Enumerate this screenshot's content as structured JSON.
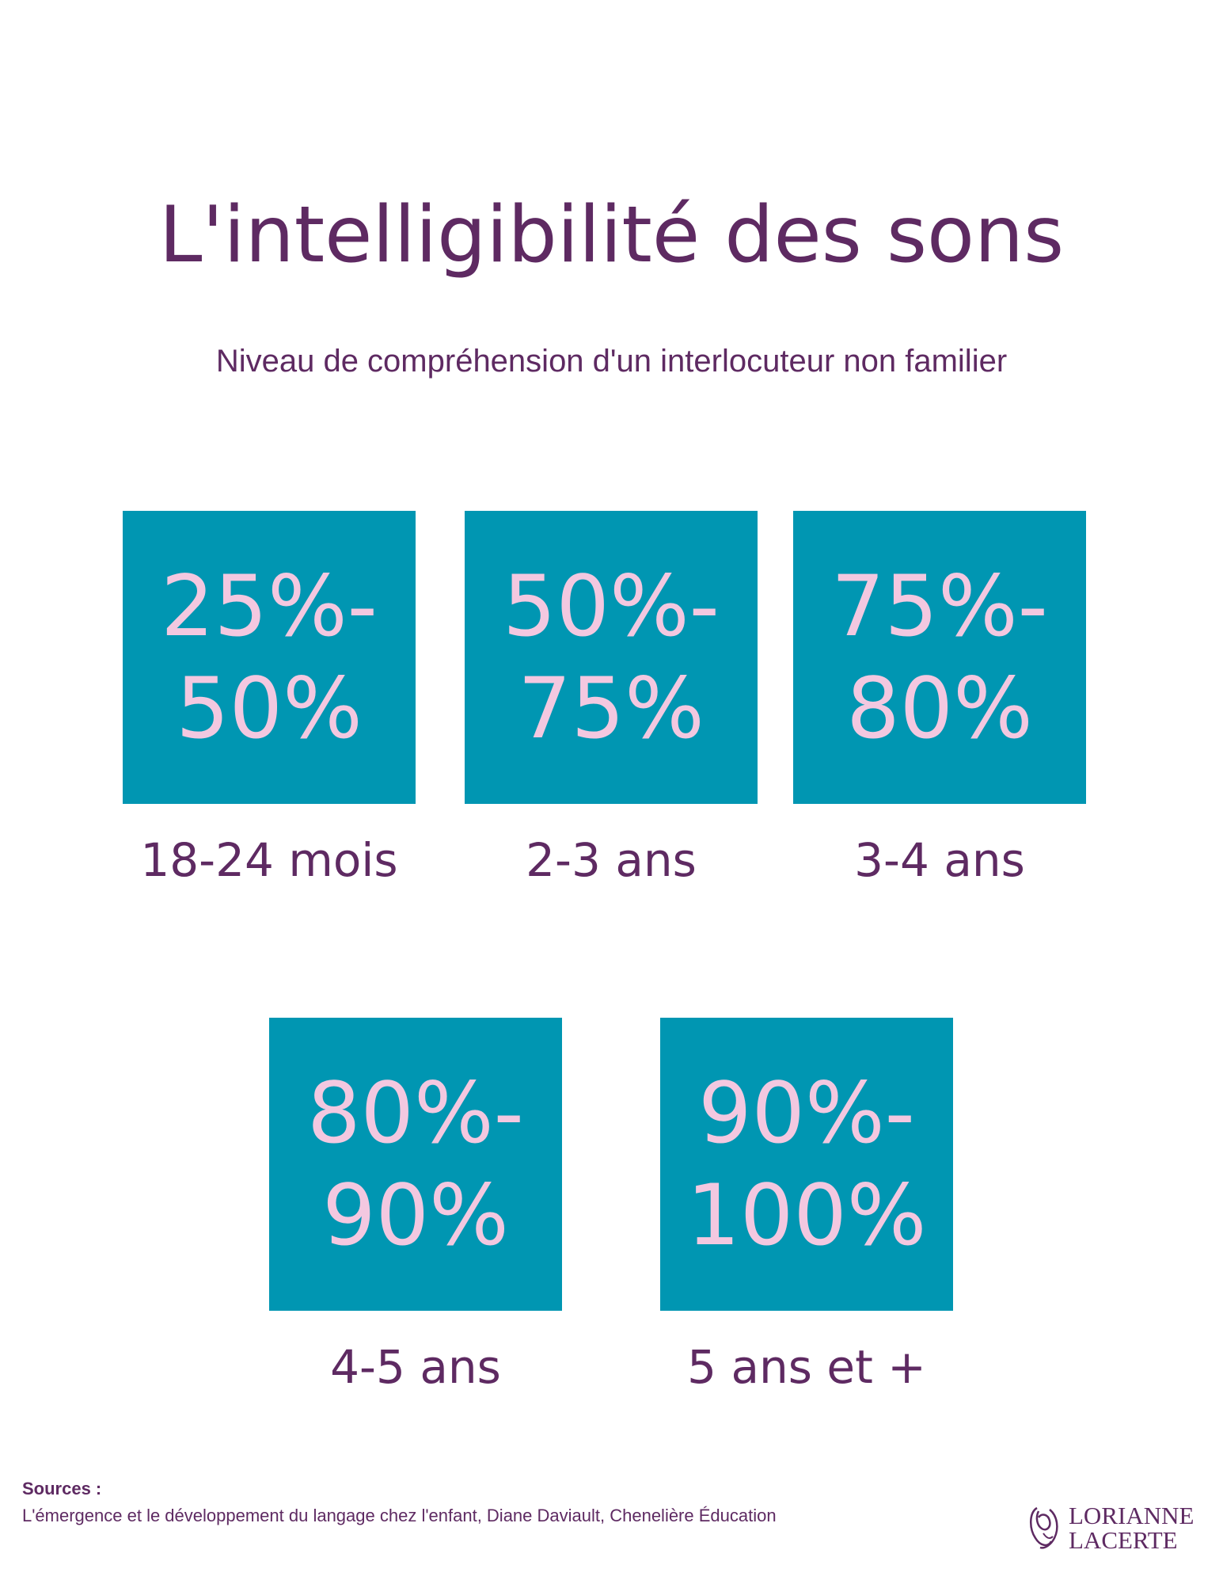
{
  "title": "L'intelligibilité des sons",
  "subtitle": "Niveau de compréhension d'un interlocuteur non familier",
  "cards": [
    {
      "range_line1": "25%-",
      "range_line2": "50%",
      "age": "18-24 mois"
    },
    {
      "range_line1": "50%-",
      "range_line2": "75%",
      "age": "2-3 ans"
    },
    {
      "range_line1": "75%-",
      "range_line2": "80%",
      "age": "3-4 ans"
    },
    {
      "range_line1": "80%-",
      "range_line2": "90%",
      "age": "4-5 ans"
    },
    {
      "range_line1": "90%-",
      "range_line2": "100%",
      "age": "5 ans et +"
    }
  ],
  "sources": {
    "heading": "Sources :",
    "text": "L'émergence et le développement du langage chez l'enfant, Diane Daviault, Chenelière Éducation"
  },
  "logo": {
    "line1": "LORIANNE",
    "line2": "LACERTE"
  },
  "colors": {
    "title": "#5e2a62",
    "box": "#0096b2",
    "box_text": "#f3c8e0"
  }
}
